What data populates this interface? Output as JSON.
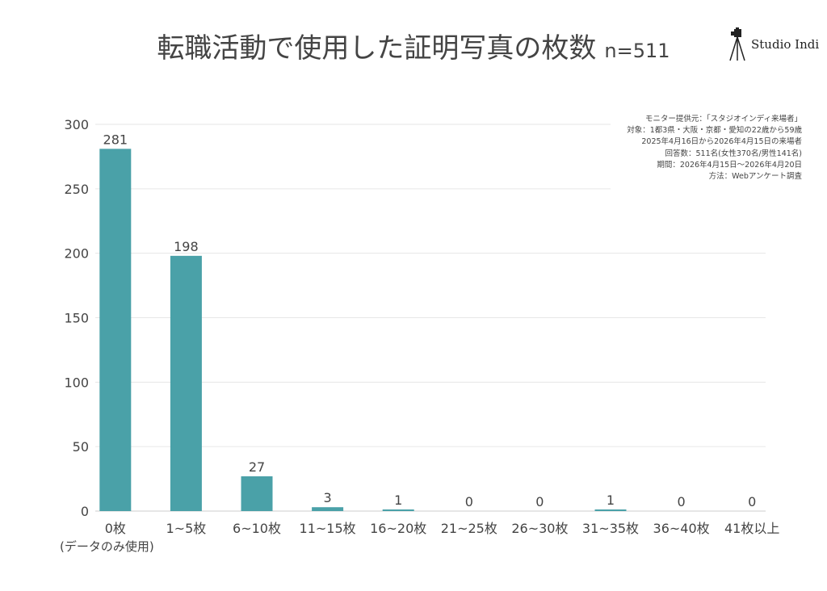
{
  "chart_data": {
    "type": "bar",
    "title": "転職活動で使用した証明写真の枚数",
    "subtitle": "n=511",
    "categories": [
      "0枚",
      "1~5枚",
      "6~10枚",
      "11~15枚",
      "16~20枚",
      "21~25枚",
      "26~30枚",
      "31~35枚",
      "36~40枚",
      "41枚以上"
    ],
    "category_note": "(データのみ使用)",
    "values": [
      281,
      198,
      27,
      3,
      1,
      0,
      0,
      1,
      0,
      0
    ],
    "ylim": [
      0,
      300
    ],
    "yticks": [
      0,
      50,
      100,
      150,
      200,
      250,
      300
    ],
    "xlabel": "",
    "ylabel": "",
    "bar_color": "#4aa1a8",
    "grid": true
  },
  "brand": {
    "name": "Studio Indi",
    "icon": "camera-tripod-icon"
  },
  "notes": [
    "モニター提供元：「スタジオインディ来場者」",
    "対象：1都3県・大阪・京都・愛知の22歳から59歳",
    "2025年4月16日から2026年4月15日の来場者",
    "回答数：511名(女性370名/男性141名)",
    "期間：2026年4月15日〜2026年4月20日",
    "方法：Webアンケート調査"
  ]
}
